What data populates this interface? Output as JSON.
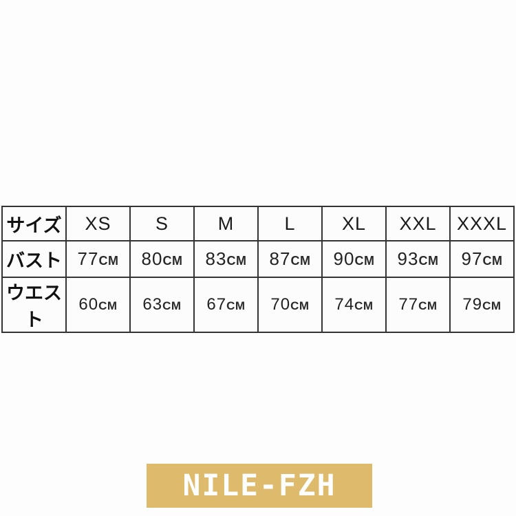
{
  "chart_data": {
    "type": "table",
    "columns": [
      "サイズ",
      "XS",
      "S",
      "M",
      "L",
      "XL",
      "XXL",
      "XXXL"
    ],
    "rows": [
      [
        "バスト",
        "77CM",
        "80CM",
        "83CM",
        "87CM",
        "90CM",
        "93CM",
        "97CM"
      ],
      [
        "ウエスト",
        "60CM",
        "63CM",
        "67CM",
        "70CM",
        "74CM",
        "77CM",
        "79CM"
      ]
    ],
    "title": "",
    "footer_badge": "NILE-FZH"
  },
  "size_chart": {
    "header": {
      "label": "サイズ",
      "sizes": [
        "XS",
        "S",
        "M",
        "L",
        "XL",
        "XXL",
        "XXXL"
      ]
    },
    "rows": [
      {
        "label": "バスト",
        "values": [
          {
            "num": "77",
            "unit": "CM"
          },
          {
            "num": "80",
            "unit": "CM"
          },
          {
            "num": "83",
            "unit": "CM"
          },
          {
            "num": "87",
            "unit": "CM"
          },
          {
            "num": "90",
            "unit": "CM"
          },
          {
            "num": "93",
            "unit": "CM"
          },
          {
            "num": "97",
            "unit": "CM"
          }
        ]
      },
      {
        "label": "ウエスト",
        "values": [
          {
            "num": "60",
            "unit": "CM"
          },
          {
            "num": "63",
            "unit": "CM"
          },
          {
            "num": "67",
            "unit": "CM"
          },
          {
            "num": "70",
            "unit": "CM"
          },
          {
            "num": "74",
            "unit": "CM"
          },
          {
            "num": "77",
            "unit": "CM"
          },
          {
            "num": "79",
            "unit": "CM"
          }
        ]
      }
    ]
  },
  "brand_badge": {
    "text": "NILE-FZH"
  },
  "colors": {
    "badge_bg": "#DEBB6C",
    "badge_text": "#FFFFFF",
    "table_border": "#333333",
    "cell_bg": "#FCFCFC",
    "page_bg": "#FDFDFD"
  }
}
